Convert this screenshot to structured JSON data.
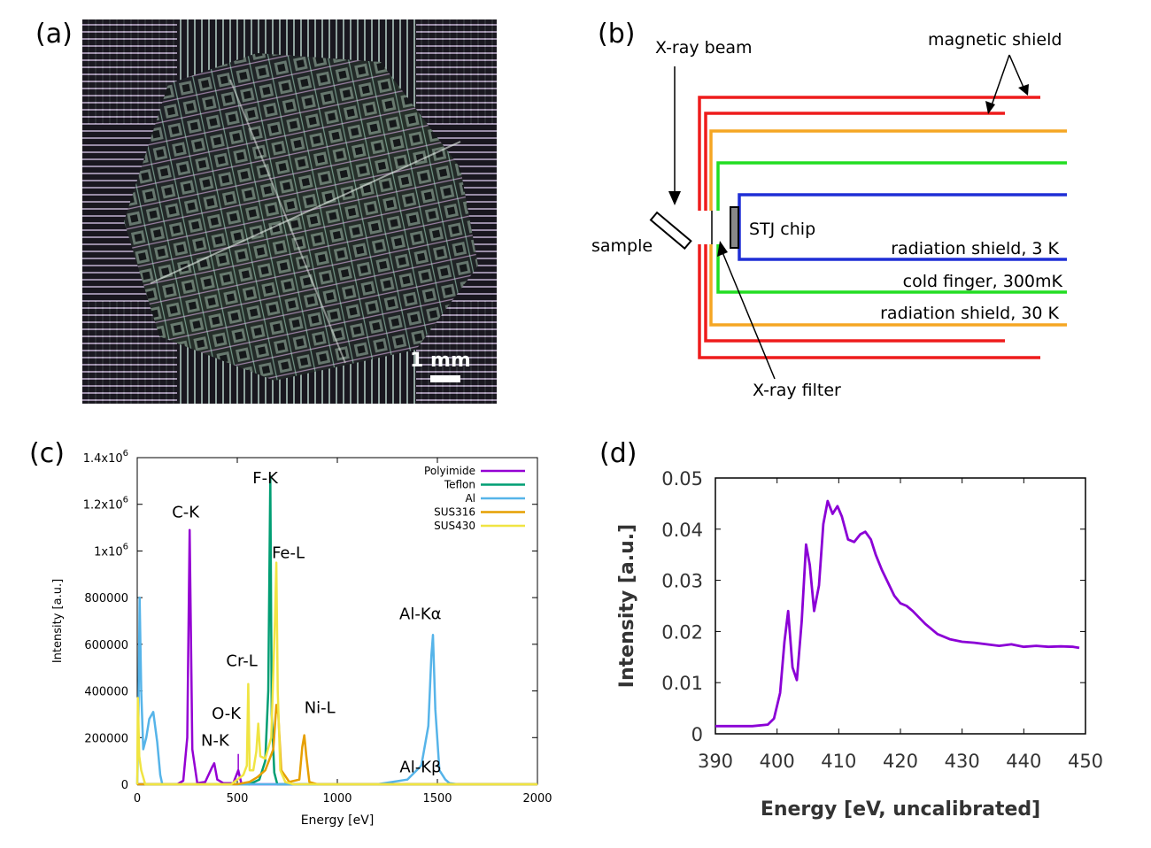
{
  "panels": {
    "a": {
      "label": "(a)",
      "scale_bar_label": "1 mm"
    },
    "b": {
      "label": "(b)",
      "labels": {
        "xray_beam": "X-ray beam",
        "magnetic_shield": "magnetic shield",
        "sample": "sample",
        "stj_chip": "STJ chip",
        "rad_shield_3k": "radiation shield, 3 K",
        "cold_finger": "cold finger, 300mK",
        "rad_shield_30k": "radiation shield, 30 K",
        "xray_filter": "X-ray filter"
      },
      "colors": {
        "magnetic_shield": "#ee1c1c",
        "radiation_shield_30k": "#f5a623",
        "cold_finger": "#22dd22",
        "radiation_shield_3k": "#1f2fd6"
      }
    },
    "c": {
      "label": "(c)"
    },
    "d": {
      "label": "(d)"
    }
  },
  "chart_data": [
    {
      "id": "c",
      "type": "line",
      "xlabel": "Energy [eV]",
      "ylabel": "Intensity [a.u.]",
      "xlim": [
        0,
        2000
      ],
      "ylim": [
        0,
        1400000
      ],
      "xticks": [
        0,
        500,
        1000,
        1500,
        2000
      ],
      "yticks": [
        {
          "v": 0,
          "label": "0"
        },
        {
          "v": 200000,
          "label": "200000"
        },
        {
          "v": 400000,
          "label": "400000"
        },
        {
          "v": 600000,
          "label": "600000"
        },
        {
          "v": 800000,
          "label": "800000"
        },
        {
          "v": 1000000,
          "label": "1x10"
        },
        {
          "v": 1200000,
          "label": "1.2x10"
        },
        {
          "v": 1400000,
          "label": "1.4x10"
        }
      ],
      "ytick_exponent": "6",
      "legend_position": "top-right",
      "series": [
        {
          "name": "Polyimide",
          "color": "#9400d3",
          "x": [
            0,
            200,
            230,
            250,
            262,
            275,
            300,
            340,
            375,
            385,
            400,
            430,
            480,
            505,
            520,
            560,
            2000
          ],
          "y": [
            0,
            0,
            15000,
            200000,
            1090000,
            150000,
            5000,
            10000,
            75000,
            90000,
            20000,
            5000,
            5000,
            60000,
            5000,
            0,
            0
          ]
        },
        {
          "name": "Teflon",
          "color": "#009e73",
          "x": [
            0,
            560,
            610,
            640,
            655,
            665,
            672,
            685,
            700,
            2000
          ],
          "y": [
            0,
            0,
            20000,
            100000,
            400000,
            1320000,
            300000,
            50000,
            0,
            0
          ]
        },
        {
          "name": "Al",
          "color": "#56b4e9",
          "x": [
            0,
            5,
            12,
            20,
            30,
            45,
            60,
            80,
            100,
            115,
            125,
            500,
            1200,
            1350,
            1420,
            1455,
            1470,
            1478,
            1490,
            1510,
            1540,
            1560,
            1600,
            2000
          ],
          "y": [
            0,
            200000,
            800000,
            400000,
            150000,
            200000,
            280000,
            310000,
            180000,
            40000,
            0,
            0,
            0,
            20000,
            80000,
            250000,
            550000,
            640000,
            320000,
            60000,
            20000,
            5000,
            0,
            0
          ]
        },
        {
          "name": "SUS316",
          "color": "#e69f00",
          "x": [
            0,
            500,
            560,
            600,
            640,
            680,
            695,
            705,
            720,
            760,
            810,
            825,
            835,
            845,
            860,
            900,
            2000
          ],
          "y": [
            0,
            0,
            10000,
            30000,
            60000,
            150000,
            340000,
            300000,
            60000,
            10000,
            20000,
            160000,
            210000,
            120000,
            10000,
            0,
            0
          ]
        },
        {
          "name": "SUS430",
          "color": "#f0e442",
          "x": [
            0,
            3,
            10,
            20,
            40,
            470,
            500,
            530,
            548,
            555,
            562,
            580,
            595,
            605,
            615,
            640,
            670,
            688,
            695,
            702,
            715,
            740,
            780,
            2000
          ],
          "y": [
            0,
            370000,
            120000,
            60000,
            0,
            0,
            20000,
            40000,
            80000,
            430000,
            60000,
            60000,
            140000,
            260000,
            120000,
            110000,
            200000,
            700000,
            950000,
            400000,
            60000,
            10000,
            0,
            0
          ]
        }
      ],
      "annotations": [
        {
          "text": "C-K",
          "x": 262,
          "y": 1090000
        },
        {
          "text": "N-K",
          "x": 385,
          "y": 90000
        },
        {
          "text": "O-K",
          "x": 505,
          "y": 60000
        },
        {
          "text": "Cr-L",
          "x": 555,
          "y": 430000
        },
        {
          "text": "F-K",
          "x": 665,
          "y": 1320000
        },
        {
          "text": "Fe-L",
          "x": 695,
          "y": 950000
        },
        {
          "text": "Ni-L",
          "x": 835,
          "y": 210000
        },
        {
          "text": "Al-Kα",
          "x": 1478,
          "y": 640000
        },
        {
          "text": "Al-Kβ",
          "x": 1555,
          "y": 20000
        }
      ]
    },
    {
      "id": "d",
      "type": "line",
      "xlabel": "Energy [eV, uncalibrated]",
      "ylabel": "Intensity [a.u.]",
      "xlim": [
        390,
        450
      ],
      "ylim": [
        0,
        0.05
      ],
      "xticks": [
        390,
        400,
        410,
        420,
        430,
        440,
        450
      ],
      "yticks": [
        0,
        0.01,
        0.02,
        0.03,
        0.04,
        0.05
      ],
      "series": [
        {
          "color": "#8b00d6",
          "x": [
            390,
            396,
            398.5,
            399.5,
            400.5,
            401.2,
            401.8,
            402.5,
            403.2,
            404,
            404.7,
            405.3,
            406,
            406.8,
            407.5,
            408.2,
            409,
            409.8,
            410.5,
            411.5,
            412.5,
            413.5,
            414.3,
            415.2,
            416,
            417,
            418,
            419,
            420,
            421,
            422,
            424,
            426,
            428,
            430,
            432,
            434,
            436,
            438,
            440,
            442,
            444,
            446,
            448,
            449
          ],
          "y": [
            0.0015,
            0.0015,
            0.0018,
            0.003,
            0.008,
            0.018,
            0.024,
            0.013,
            0.0105,
            0.022,
            0.037,
            0.033,
            0.024,
            0.029,
            0.041,
            0.0455,
            0.043,
            0.0445,
            0.0425,
            0.038,
            0.0375,
            0.039,
            0.0395,
            0.038,
            0.035,
            0.032,
            0.0295,
            0.027,
            0.0255,
            0.025,
            0.024,
            0.0215,
            0.0195,
            0.0185,
            0.018,
            0.0178,
            0.0175,
            0.0172,
            0.0175,
            0.017,
            0.0172,
            0.017,
            0.0171,
            0.017,
            0.0168
          ]
        }
      ]
    }
  ]
}
